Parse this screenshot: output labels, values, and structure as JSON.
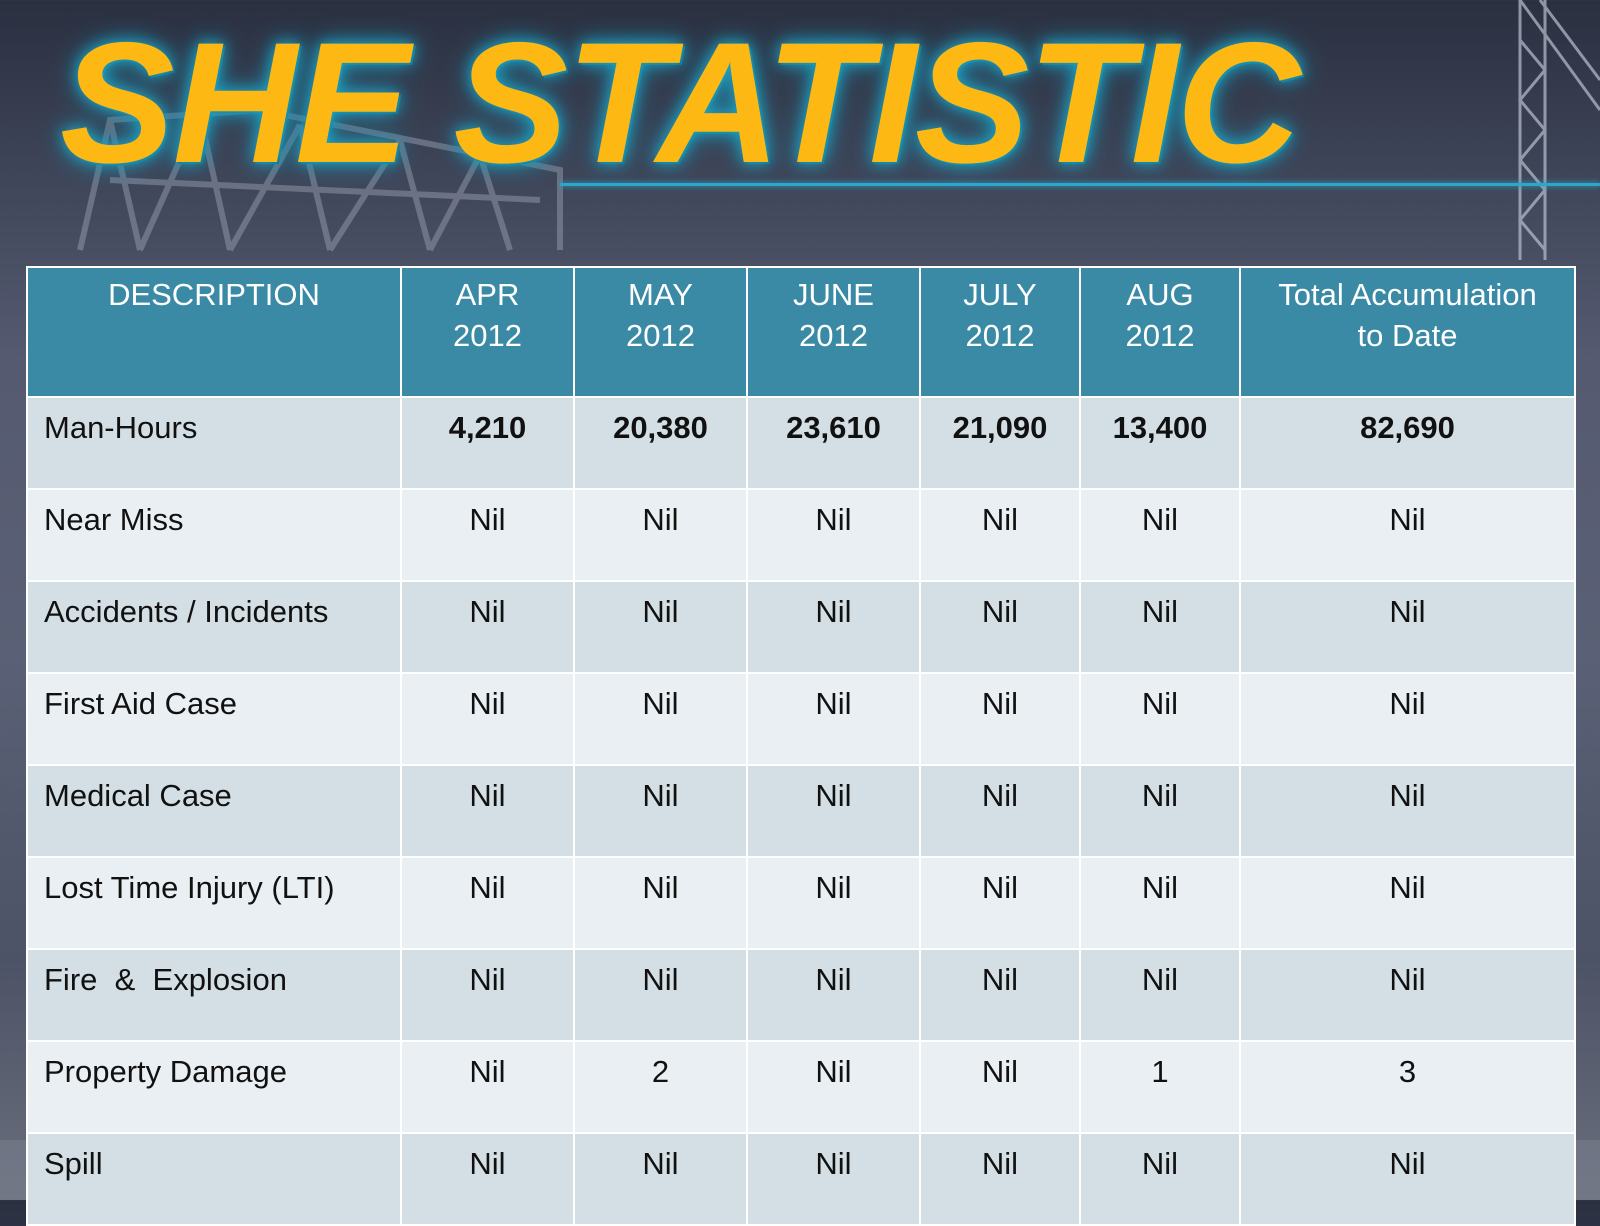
{
  "title": "SHE STATISTIC",
  "colors": {
    "title": "#fdb813",
    "title_glow": "#1fa3c4",
    "header_bg": "#3a8aa6",
    "row_odd": "#d3dfe4",
    "row_even": "#e9eff2"
  },
  "table": {
    "headers": [
      {
        "line1": "DESCRIPTION",
        "line2": ""
      },
      {
        "line1": "APR",
        "line2": "2012"
      },
      {
        "line1": "MAY",
        "line2": "2012"
      },
      {
        "line1": "JUNE",
        "line2": "2012"
      },
      {
        "line1": "JULY",
        "line2": "2012"
      },
      {
        "line1": "AUG",
        "line2": "2012"
      },
      {
        "line1": "Total Accumulation",
        "line2": "to Date"
      }
    ],
    "rows": [
      {
        "label": "Man-Hours",
        "cells": [
          "4,210",
          "20,380",
          "23,610",
          "21,090",
          "13,400",
          "82,690"
        ]
      },
      {
        "label": "Near Miss",
        "cells": [
          "Nil",
          "Nil",
          "Nil",
          "Nil",
          "Nil",
          "Nil"
        ]
      },
      {
        "label": "Accidents / Incidents",
        "cells": [
          "Nil",
          "Nil",
          "Nil",
          "Nil",
          "Nil",
          "Nil"
        ]
      },
      {
        "label": "First Aid Case",
        "cells": [
          "Nil",
          "Nil",
          "Nil",
          "Nil",
          "Nil",
          "Nil"
        ]
      },
      {
        "label": "Medical Case",
        "cells": [
          "Nil",
          "Nil",
          "Nil",
          "Nil",
          "Nil",
          "Nil"
        ]
      },
      {
        "label": "Lost Time Injury (LTI)",
        "cells": [
          "Nil",
          "Nil",
          "Nil",
          "Nil",
          "Nil",
          "Nil"
        ]
      },
      {
        "label": "Fire  &  Explosion",
        "cells": [
          "Nil",
          "Nil",
          "Nil",
          "Nil",
          "Nil",
          "Nil"
        ]
      },
      {
        "label": "Property Damage",
        "cells": [
          "Nil",
          "2",
          "Nil",
          "Nil",
          "1",
          "3"
        ]
      },
      {
        "label": "Spill",
        "cells": [
          "Nil",
          "Nil",
          "Nil",
          "Nil",
          "Nil",
          "Nil"
        ]
      }
    ]
  }
}
